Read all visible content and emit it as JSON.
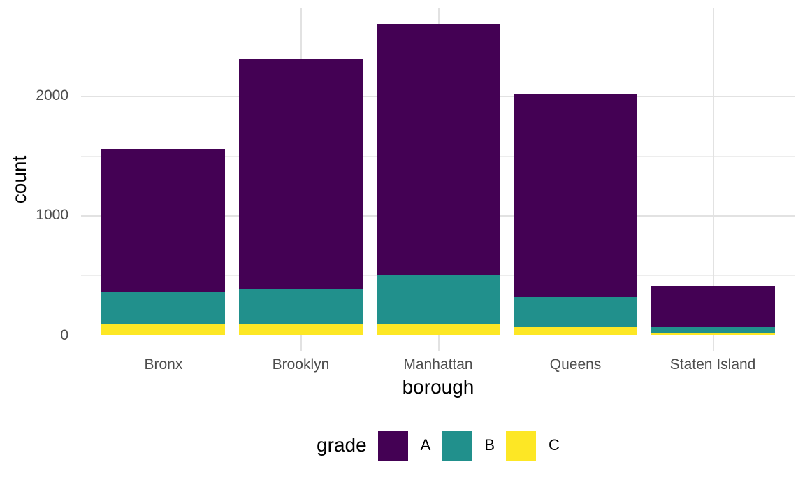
{
  "chart_data": {
    "type": "bar",
    "stacked": true,
    "orientation": "vertical",
    "title": "",
    "xlabel": "borough",
    "ylabel": "count",
    "categories": [
      "Bronx",
      "Brooklyn",
      "Manhattan",
      "Queens",
      "Staten Island"
    ],
    "series": [
      {
        "name": "A",
        "color": "#440154",
        "values": [
          1195,
          1920,
          2095,
          1695,
          340
        ]
      },
      {
        "name": "B",
        "color": "#21908C",
        "values": [
          265,
          300,
          410,
          247,
          55
        ]
      },
      {
        "name": "C",
        "color": "#FDE725",
        "values": [
          95,
          90,
          90,
          70,
          14
        ]
      }
    ],
    "stack_bottom_to_top": [
      "C",
      "B",
      "A"
    ],
    "totals": [
      1555,
      2310,
      2595,
      2012,
      409
    ],
    "y_axis": {
      "ticks": [
        0,
        1000,
        2000
      ],
      "tick_labels": [
        "0",
        "1000",
        "2000"
      ],
      "minor_ticks": [
        500,
        1500,
        2500
      ],
      "range": [
        0,
        2733
      ]
    },
    "x_axis": {
      "tick_labels": [
        "Bronx",
        "Brooklyn",
        "Manhattan",
        "Queens",
        "Staten Island"
      ]
    },
    "legend": {
      "title": "grade",
      "position": "bottom",
      "entries": [
        "A",
        "B",
        "C"
      ]
    },
    "grid": {
      "on": true,
      "major_color": "#E2E2E2",
      "minor_color": "#EDEDED"
    },
    "colors": {
      "background": "#FFFFFF",
      "tick_label_text": "#4D4D4D",
      "axis_title_text": "#000000",
      "legend_text": "#000000"
    }
  }
}
